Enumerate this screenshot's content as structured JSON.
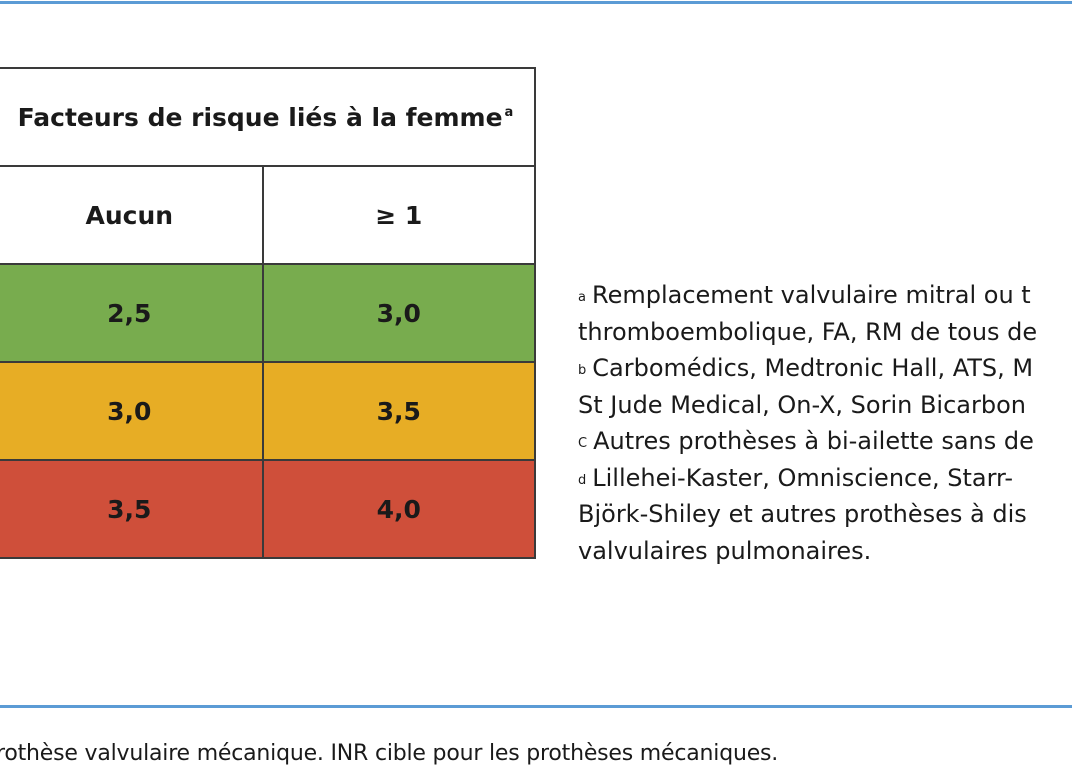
{
  "table": {
    "header": {
      "title": "Facteurs de risque liés à la femme",
      "title_sup": "a"
    },
    "subheader": [
      "Aucun",
      "≥ 1"
    ],
    "rows": [
      {
        "values": [
          "2,5",
          "3,0"
        ],
        "color": "#78ac4e"
      },
      {
        "values": [
          "3,0",
          "3,5"
        ],
        "color": "#e7ad25"
      },
      {
        "values": [
          "3,5",
          "4,0"
        ],
        "color": "#cf4f3a"
      }
    ]
  },
  "footnotes": {
    "a": {
      "marker": "a",
      "lines": [
        "Remplacement valvulaire mitral ou t",
        "thromboembolique, FA, RM de tous de"
      ]
    },
    "b": {
      "marker": "b",
      "lines": [
        "Carbomédics, Medtronic Hall, ATS, M",
        "St Jude Medical, On-X, Sorin Bicarbon"
      ]
    },
    "c": {
      "marker": "C",
      "lines": [
        "Autres prothèses à bi-ailette sans de"
      ]
    },
    "d": {
      "marker": "d",
      "lines": [
        "Lillehei-Kaster, Omniscience, Starr-",
        "Björk-Shiley et autres prothèses à dis",
        "valvulaires pulmonaires."
      ]
    }
  },
  "caption": "rothèse valvulaire mécanique. INR cible pour les prothèses mécaniques."
}
